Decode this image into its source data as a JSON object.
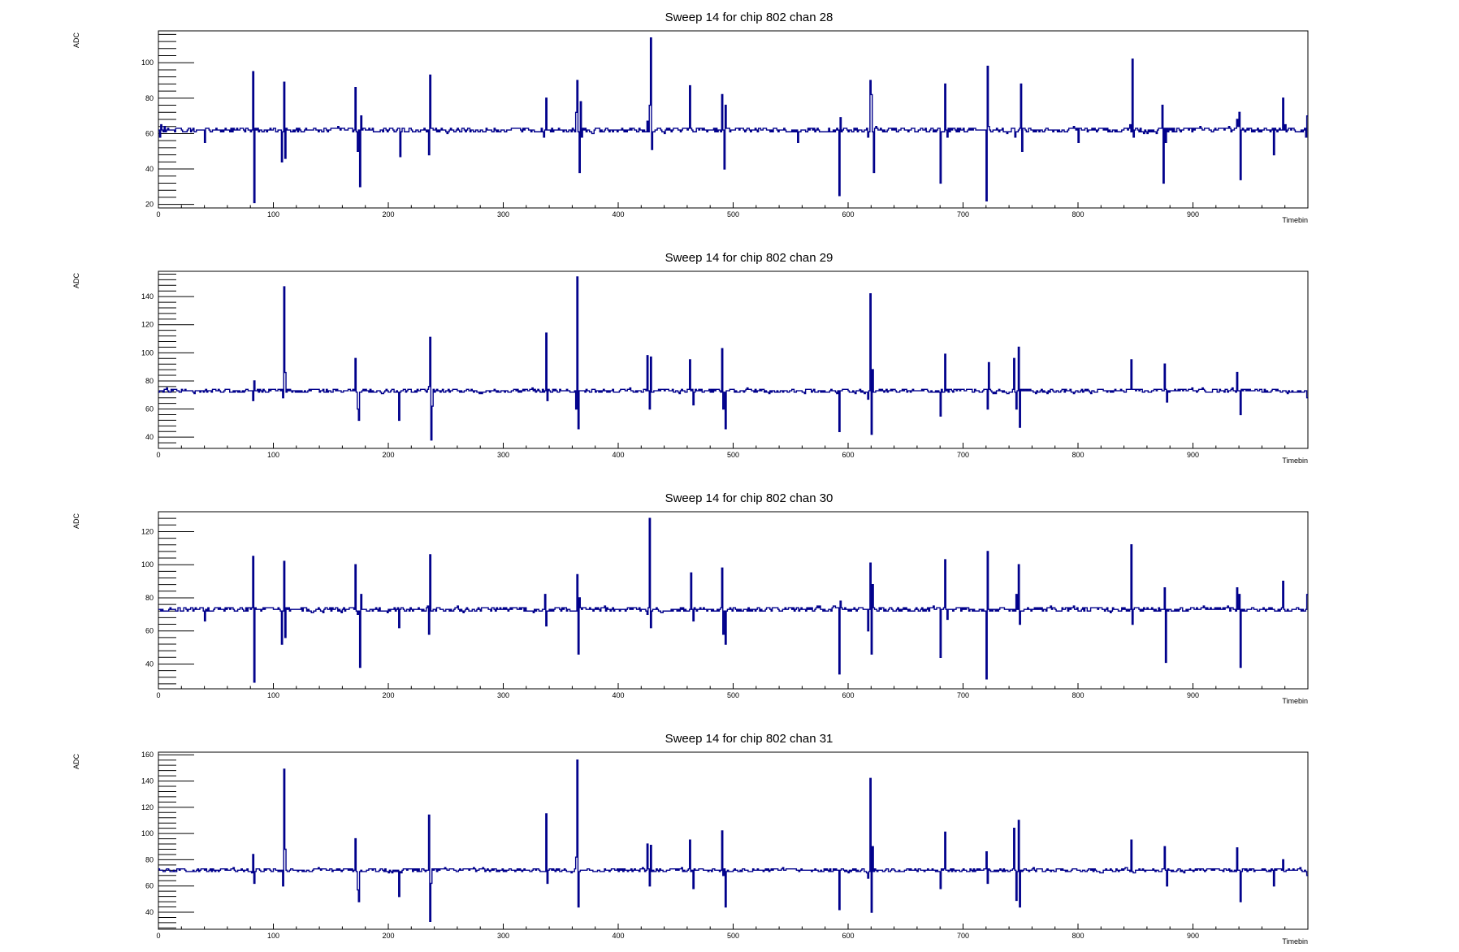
{
  "colors": {
    "trace": "#00008b",
    "axis": "#000000",
    "background": "#ffffff"
  },
  "chart_data": [
    {
      "type": "line",
      "title": "Sweep 14 for chip 802 chan 28",
      "xlabel": "Timebin",
      "ylabel": "ADC",
      "xlim": [
        0,
        1000
      ],
      "ylim": [
        18,
        118
      ],
      "x_ticks": [
        0,
        100,
        200,
        300,
        400,
        500,
        600,
        700,
        800,
        900
      ],
      "y_ticks": [
        20,
        40,
        60,
        80,
        100
      ],
      "baseline": 62,
      "noise": 2,
      "spikes": [
        [
          1,
          58
        ],
        [
          2,
          65
        ],
        [
          5,
          64
        ],
        [
          40,
          55
        ],
        [
          82,
          95
        ],
        [
          83,
          21
        ],
        [
          107,
          44
        ],
        [
          109,
          89
        ],
        [
          110,
          46
        ],
        [
          171,
          86
        ],
        [
          173,
          50
        ],
        [
          175,
          30
        ],
        [
          176,
          70
        ],
        [
          210,
          47
        ],
        [
          235,
          48
        ],
        [
          236,
          93
        ],
        [
          335,
          58
        ],
        [
          337,
          80
        ],
        [
          363,
          72
        ],
        [
          364,
          90
        ],
        [
          366,
          38
        ],
        [
          367,
          78
        ],
        [
          368,
          58
        ],
        [
          425,
          67
        ],
        [
          427,
          76
        ],
        [
          428,
          114
        ],
        [
          429,
          51
        ],
        [
          462,
          87
        ],
        [
          490,
          82
        ],
        [
          492,
          40
        ],
        [
          493,
          76
        ],
        [
          556,
          55
        ],
        [
          592,
          25
        ],
        [
          593,
          69
        ],
        [
          617,
          58
        ],
        [
          619,
          90
        ],
        [
          620,
          82
        ],
        [
          622,
          38
        ],
        [
          680,
          32
        ],
        [
          684,
          88
        ],
        [
          686,
          58
        ],
        [
          720,
          22
        ],
        [
          721,
          98
        ],
        [
          745,
          58
        ],
        [
          748,
          62
        ],
        [
          750,
          88
        ],
        [
          751,
          50
        ],
        [
          800,
          55
        ],
        [
          845,
          65
        ],
        [
          847,
          102
        ],
        [
          848,
          58
        ],
        [
          873,
          76
        ],
        [
          874,
          32
        ],
        [
          876,
          55
        ],
        [
          938,
          68
        ],
        [
          940,
          72
        ],
        [
          941,
          34
        ],
        [
          970,
          48
        ],
        [
          978,
          80
        ],
        [
          980,
          65
        ],
        [
          998,
          58
        ],
        [
          999,
          70
        ]
      ],
      "seed": 28
    },
    {
      "type": "line",
      "title": "Sweep 14 for chip 802 chan 29",
      "xlabel": "Timebin",
      "ylabel": "ADC",
      "xlim": [
        0,
        1000
      ],
      "ylim": [
        32,
        158
      ],
      "x_ticks": [
        0,
        100,
        200,
        300,
        400,
        500,
        600,
        700,
        800,
        900
      ],
      "y_ticks": [
        40,
        60,
        80,
        100,
        120,
        140
      ],
      "baseline": 73,
      "noise": 2,
      "spikes": [
        [
          82,
          66
        ],
        [
          83,
          80
        ],
        [
          108,
          68
        ],
        [
          109,
          147
        ],
        [
          110,
          86
        ],
        [
          171,
          96
        ],
        [
          173,
          60
        ],
        [
          174,
          52
        ],
        [
          209,
          52
        ],
        [
          235,
          76
        ],
        [
          236,
          111
        ],
        [
          237,
          38
        ],
        [
          238,
          62
        ],
        [
          337,
          114
        ],
        [
          338,
          66
        ],
        [
          363,
          60
        ],
        [
          364,
          154
        ],
        [
          365,
          46
        ],
        [
          425,
          98
        ],
        [
          427,
          60
        ],
        [
          428,
          97
        ],
        [
          462,
          95
        ],
        [
          465,
          63
        ],
        [
          490,
          103
        ],
        [
          491,
          60
        ],
        [
          493,
          46
        ],
        [
          592,
          44
        ],
        [
          617,
          67
        ],
        [
          619,
          142
        ],
        [
          620,
          42
        ],
        [
          621,
          88
        ],
        [
          680,
          55
        ],
        [
          684,
          99
        ],
        [
          721,
          60
        ],
        [
          722,
          93
        ],
        [
          744,
          96
        ],
        [
          746,
          60
        ],
        [
          748,
          104
        ],
        [
          749,
          47
        ],
        [
          846,
          95
        ],
        [
          875,
          92
        ],
        [
          877,
          65
        ],
        [
          938,
          86
        ],
        [
          941,
          56
        ],
        [
          999,
          68
        ]
      ],
      "seed": 29
    },
    {
      "type": "line",
      "title": "Sweep 14 for chip 802 chan 30",
      "xlabel": "Timebin",
      "ylabel": "ADC",
      "xlim": [
        0,
        1000
      ],
      "ylim": [
        25,
        132
      ],
      "x_ticks": [
        0,
        100,
        200,
        300,
        400,
        500,
        600,
        700,
        800,
        900
      ],
      "y_ticks": [
        40,
        60,
        80,
        100,
        120
      ],
      "baseline": 73,
      "noise": 2,
      "spikes": [
        [
          40,
          66
        ],
        [
          82,
          105
        ],
        [
          83,
          29
        ],
        [
          107,
          52
        ],
        [
          109,
          102
        ],
        [
          110,
          56
        ],
        [
          171,
          100
        ],
        [
          173,
          70
        ],
        [
          175,
          38
        ],
        [
          176,
          82
        ],
        [
          209,
          62
        ],
        [
          235,
          58
        ],
        [
          236,
          106
        ],
        [
          336,
          82
        ],
        [
          337,
          63
        ],
        [
          364,
          94
        ],
        [
          365,
          46
        ],
        [
          366,
          80
        ],
        [
          425,
          70
        ],
        [
          427,
          128
        ],
        [
          428,
          62
        ],
        [
          463,
          95
        ],
        [
          465,
          66
        ],
        [
          490,
          98
        ],
        [
          491,
          58
        ],
        [
          493,
          52
        ],
        [
          592,
          34
        ],
        [
          593,
          78
        ],
        [
          617,
          60
        ],
        [
          619,
          101
        ],
        [
          620,
          46
        ],
        [
          621,
          88
        ],
        [
          680,
          44
        ],
        [
          684,
          103
        ],
        [
          686,
          67
        ],
        [
          720,
          31
        ],
        [
          721,
          108
        ],
        [
          746,
          82
        ],
        [
          748,
          100
        ],
        [
          749,
          64
        ],
        [
          846,
          112
        ],
        [
          847,
          64
        ],
        [
          875,
          86
        ],
        [
          876,
          41
        ],
        [
          938,
          86
        ],
        [
          940,
          82
        ],
        [
          941,
          38
        ],
        [
          978,
          90
        ],
        [
          999,
          82
        ]
      ],
      "seed": 30
    },
    {
      "type": "line",
      "title": "Sweep 14 for chip 802 chan 31",
      "xlabel": "Timebin",
      "ylabel": "ADC",
      "xlim": [
        0,
        1000
      ],
      "ylim": [
        27,
        162
      ],
      "x_ticks": [
        0,
        100,
        200,
        300,
        400,
        500,
        600,
        700,
        800,
        900
      ],
      "y_ticks": [
        40,
        60,
        80,
        100,
        120,
        140,
        160
      ],
      "baseline": 72,
      "noise": 2,
      "spikes": [
        [
          82,
          84
        ],
        [
          83,
          62
        ],
        [
          108,
          60
        ],
        [
          109,
          149
        ],
        [
          110,
          88
        ],
        [
          171,
          96
        ],
        [
          173,
          57
        ],
        [
          174,
          48
        ],
        [
          209,
          52
        ],
        [
          235,
          114
        ],
        [
          236,
          33
        ],
        [
          237,
          62
        ],
        [
          337,
          115
        ],
        [
          338,
          62
        ],
        [
          363,
          82
        ],
        [
          364,
          156
        ],
        [
          365,
          44
        ],
        [
          425,
          92
        ],
        [
          427,
          60
        ],
        [
          428,
          91
        ],
        [
          462,
          95
        ],
        [
          465,
          58
        ],
        [
          490,
          102
        ],
        [
          491,
          68
        ],
        [
          493,
          44
        ],
        [
          592,
          42
        ],
        [
          617,
          66
        ],
        [
          619,
          142
        ],
        [
          620,
          40
        ],
        [
          621,
          90
        ],
        [
          680,
          58
        ],
        [
          684,
          101
        ],
        [
          720,
          86
        ],
        [
          721,
          62
        ],
        [
          744,
          104
        ],
        [
          746,
          49
        ],
        [
          748,
          110
        ],
        [
          749,
          44
        ],
        [
          846,
          95
        ],
        [
          875,
          90
        ],
        [
          877,
          60
        ],
        [
          938,
          89
        ],
        [
          941,
          48
        ],
        [
          970,
          60
        ],
        [
          978,
          80
        ],
        [
          999,
          68
        ]
      ],
      "seed": 31
    }
  ]
}
